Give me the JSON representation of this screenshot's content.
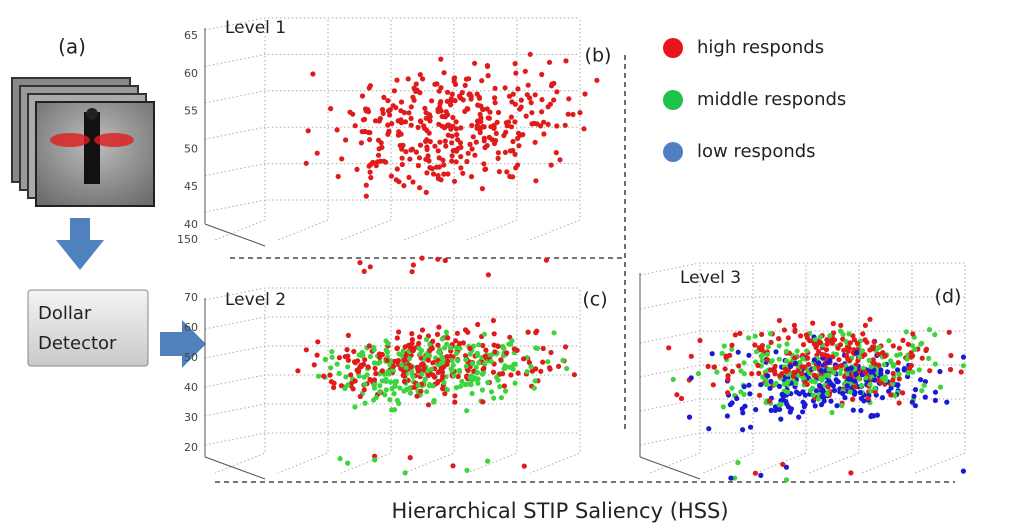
{
  "input": {
    "label": "(a)",
    "detector": [
      "Dollar",
      "Detector"
    ]
  },
  "plots": [
    {
      "level": "Level 1",
      "label": "(b)",
      "yticks": [
        65,
        60,
        55,
        50,
        45,
        40
      ],
      "xtick": 150,
      "colors": [
        "#e01b1b"
      ]
    },
    {
      "level": "Level 2",
      "label": "(c)",
      "yticks": [
        70,
        60,
        50,
        40,
        30,
        20
      ],
      "colors": [
        "#e01b1b",
        "#3ed43e"
      ]
    },
    {
      "level": "Level 3",
      "label": "(d)",
      "colors": [
        "#e01b1b",
        "#3ed43e",
        "#1a1ad6"
      ]
    }
  ],
  "legend": [
    {
      "text": "high responds",
      "color": "#e8141a"
    },
    {
      "text": "middle responds",
      "color": "#1fc24a"
    },
    {
      "text": "low responds",
      "color": "#4f7fc0"
    }
  ],
  "caption": "Hierarchical STIP Saliency  (HSS)"
}
